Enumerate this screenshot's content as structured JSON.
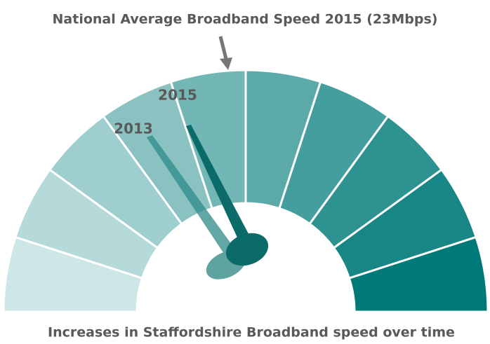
{
  "header": {
    "title": "National Average Broadband Speed 2015 (23Mbps)"
  },
  "gauge": {
    "needles": [
      {
        "label": "2015"
      },
      {
        "label": "2013"
      }
    ]
  },
  "footer": {
    "caption": "Increases in Staffordshire Broadband speed over time"
  }
}
